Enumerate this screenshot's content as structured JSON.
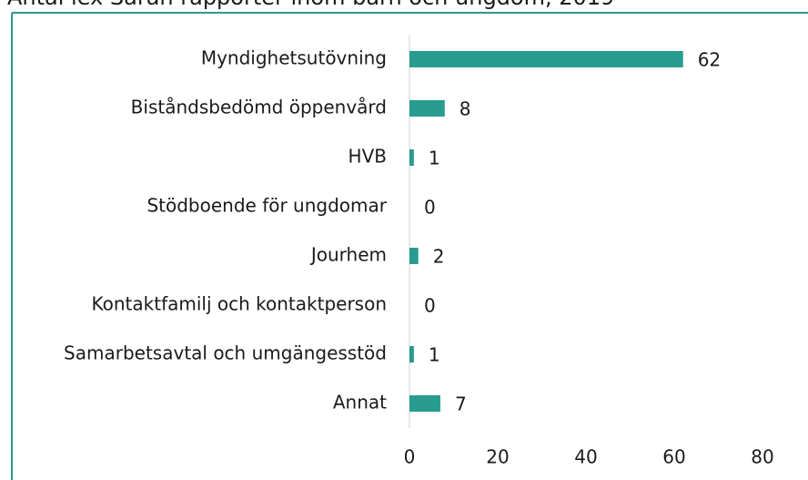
{
  "chart_data": {
    "type": "bar",
    "orientation": "horizontal",
    "title": "Antal lex Sarah rapporter inom barn och ungdom, 2019",
    "categories": [
      "Myndighetsutövning",
      "Biståndsbedömd öppenvård",
      "HVB",
      "Stödboende för ungdomar",
      "Jourhem",
      "Kontaktfamilj och kontaktperson",
      "Samarbetsavtal och umgängesstöd",
      "Annat"
    ],
    "values": [
      62,
      8,
      1,
      0,
      2,
      0,
      1,
      7
    ],
    "color": "#279c8f",
    "xlim": [
      0,
      80
    ],
    "xticks": [
      0,
      20,
      40,
      60,
      80
    ],
    "grid": false
  }
}
